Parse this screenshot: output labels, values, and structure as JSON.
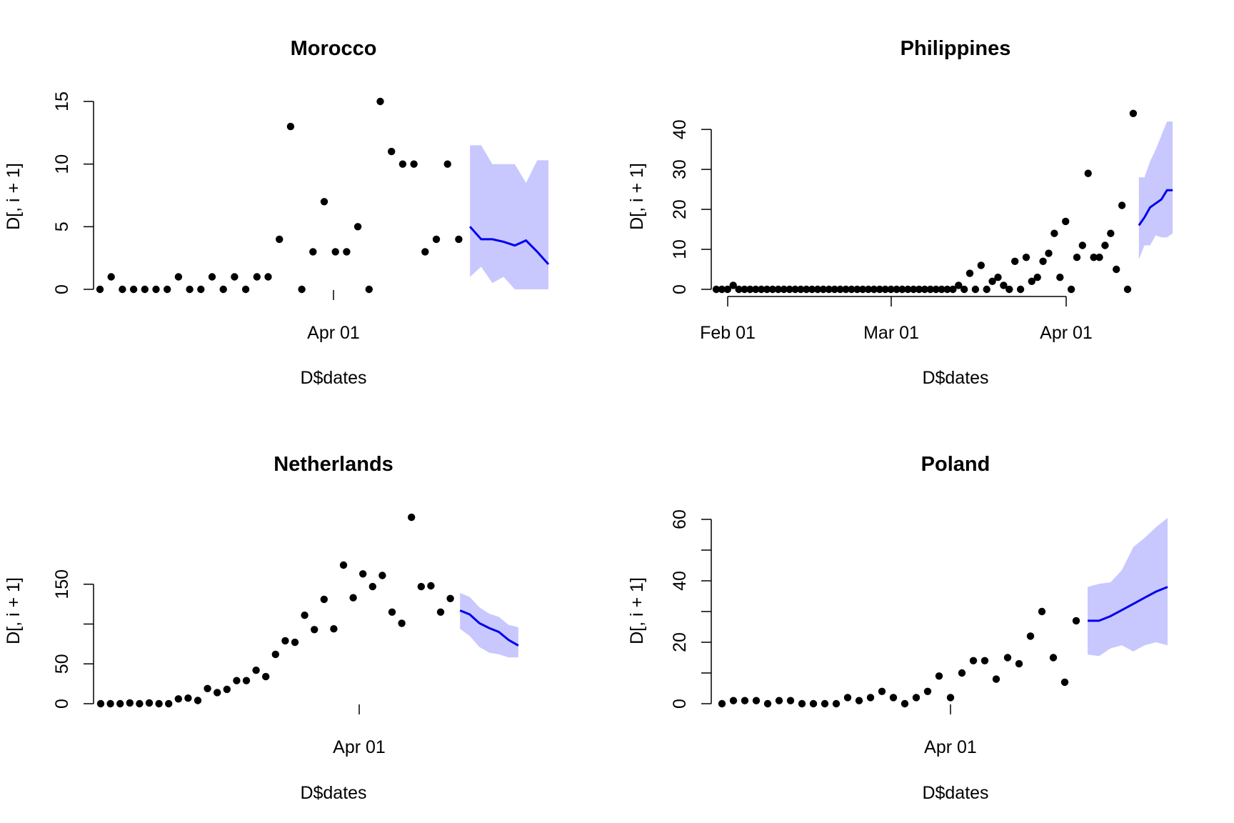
{
  "colors": {
    "points": "#000000",
    "forecast_line": "#0000ee",
    "forecast_band": "#c8c8ff"
  },
  "chart_data": [
    {
      "type": "scatter",
      "title": "Morocco",
      "xlabel": "D$dates",
      "ylabel": "D[, i + 1]",
      "x_ticks": [
        "Apr 01"
      ],
      "y_ticks": [
        0,
        5,
        10,
        15
      ],
      "ylim": [
        0,
        15
      ],
      "observed_values": [
        0,
        1,
        0,
        0,
        0,
        0,
        0,
        1,
        0,
        0,
        1,
        0,
        1,
        0,
        1,
        1,
        4,
        13,
        0,
        3,
        7,
        3,
        3,
        5,
        0,
        15,
        11,
        10,
        10,
        3,
        4,
        10,
        4
      ],
      "forecast": {
        "mean": [
          5,
          4,
          4,
          3.8,
          3.5,
          3.9,
          3,
          2
        ],
        "lower": [
          1,
          1.8,
          0.5,
          1,
          0,
          0,
          0,
          0
        ],
        "upper": [
          11.5,
          11.5,
          10,
          10,
          10,
          8.5,
          10.3,
          10.3
        ]
      }
    },
    {
      "type": "scatter",
      "title": "Philippines",
      "xlabel": "D$dates",
      "ylabel": "D[, i + 1]",
      "x_ticks": [
        "Feb 01",
        "Mar 01",
        "Apr 01"
      ],
      "y_ticks": [
        0,
        10,
        20,
        30,
        40
      ],
      "ylim": [
        0,
        42
      ],
      "observed_values": [
        0,
        0,
        0,
        1,
        0,
        0,
        0,
        0,
        0,
        0,
        0,
        0,
        0,
        0,
        0,
        0,
        0,
        0,
        0,
        0,
        0,
        0,
        0,
        0,
        0,
        0,
        0,
        0,
        0,
        0,
        0,
        0,
        0,
        0,
        0,
        0,
        0,
        0,
        0,
        0,
        0,
        0,
        0,
        1,
        0,
        4,
        0,
        6,
        0,
        2,
        3,
        1,
        0,
        7,
        0,
        8,
        2,
        3,
        7,
        9,
        14,
        3,
        17,
        0,
        8,
        11,
        29,
        8,
        8,
        11,
        14,
        5,
        21,
        0,
        44
      ],
      "forecast": {
        "mean": [
          16,
          18,
          20.5,
          21.5,
          22.5,
          24.8,
          24.8
        ],
        "lower": [
          7.5,
          11,
          11,
          13.5,
          13,
          13,
          14
        ],
        "upper": [
          28,
          28,
          32,
          35,
          38.5,
          42,
          42
        ]
      }
    },
    {
      "type": "scatter",
      "title": "Netherlands",
      "xlabel": "D$dates",
      "ylabel": "D[, i + 1]",
      "x_ticks": [
        "Apr 01"
      ],
      "y_ticks": [
        0,
        50,
        100,
        150
      ],
      "y_tick_labels": [
        "0",
        "50",
        "",
        "150"
      ],
      "ylim": [
        0,
        200
      ],
      "observed_values": [
        0,
        0,
        0,
        1,
        0,
        1,
        0,
        0,
        6,
        7,
        4,
        19,
        14,
        18,
        29,
        29,
        42,
        34,
        62,
        79,
        77,
        111,
        93,
        131,
        94,
        174,
        133,
        163,
        147,
        161,
        115,
        101,
        234,
        147,
        148,
        115,
        132
      ],
      "forecast": {
        "mean": [
          117,
          112,
          101,
          95,
          90,
          80,
          73
        ],
        "lower": [
          94,
          85,
          71,
          64,
          62,
          58,
          58
        ],
        "upper": [
          139,
          134,
          121,
          113,
          109,
          99,
          96
        ]
      }
    },
    {
      "type": "scatter",
      "title": "Poland",
      "xlabel": "D$dates",
      "ylabel": "D[, i + 1]",
      "x_ticks": [
        "Apr 01"
      ],
      "y_ticks": [
        0,
        20,
        40,
        60
      ],
      "ylim": [
        0,
        60
      ],
      "observed_values": [
        0,
        1,
        1,
        1,
        0,
        1,
        1,
        0,
        0,
        0,
        0,
        2,
        1,
        2,
        4,
        2,
        0,
        2,
        4,
        9,
        2,
        10,
        14,
        14,
        8,
        15,
        13,
        22,
        30,
        15,
        7,
        27
      ],
      "forecast": {
        "mean": [
          27,
          27,
          28.5,
          30.5,
          32.5,
          34.5,
          36.5,
          38
        ],
        "lower": [
          16,
          15.5,
          18,
          19,
          17,
          19,
          20,
          19
        ],
        "upper": [
          38,
          39,
          39.5,
          43.5,
          51,
          54,
          57.5,
          60.5
        ]
      }
    }
  ]
}
